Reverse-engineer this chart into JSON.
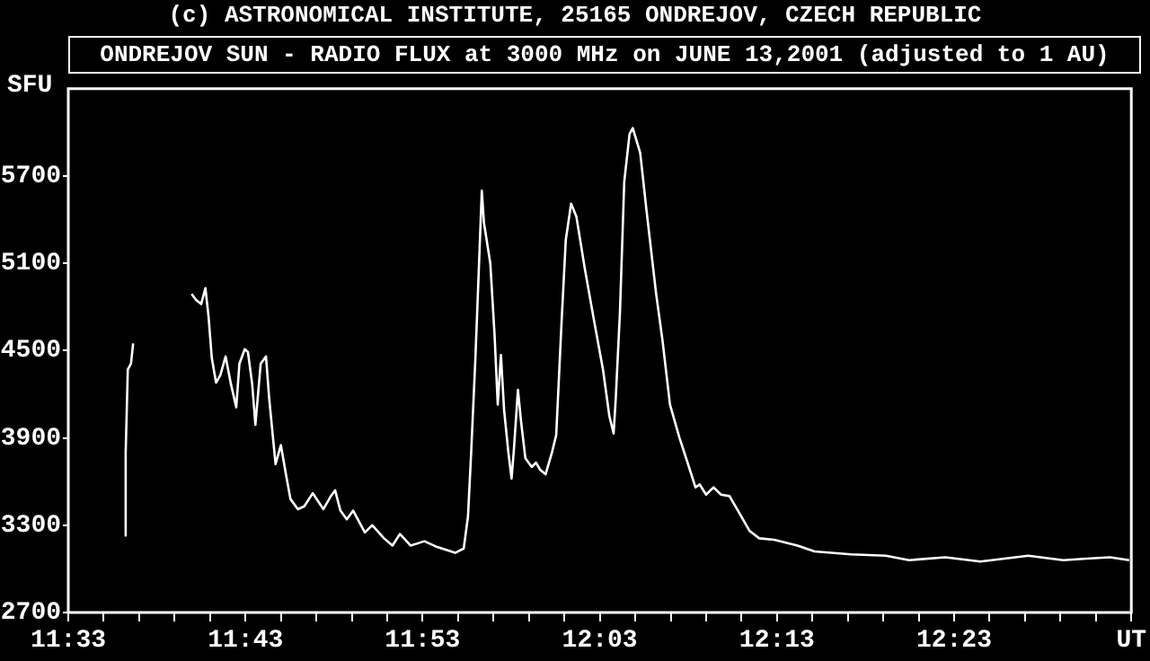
{
  "chart_data": {
    "type": "line",
    "annotations": [
      "(c) ASTRONOMICAL INSTITUTE, 25165 ONDREJOV, CZECH REPUBLIC"
    ],
    "title": "ONDREJOV SUN - RADIO FLUX at 3000 MHz on JUNE 13,2001 (adjusted to 1 AU)",
    "ylabel": "SFU",
    "x": [
      11.603,
      11.604,
      11.606,
      11.609,
      11.611,
      11.63,
      11.666,
      11.67,
      11.675,
      11.679,
      11.682,
      11.685,
      11.689,
      11.693,
      11.698,
      11.703,
      11.708,
      11.711,
      11.716,
      11.719,
      11.723,
      11.726,
      11.731,
      11.736,
      11.739,
      11.745,
      11.75,
      11.755,
      11.759,
      11.766,
      11.772,
      11.78,
      11.79,
      11.797,
      11.801,
      11.806,
      11.812,
      11.818,
      11.829,
      11.836,
      11.847,
      11.855,
      11.862,
      11.872,
      11.885,
      11.897,
      11.914,
      11.922,
      11.926,
      11.929,
      11.933,
      11.936,
      11.939,
      11.941,
      11.947,
      11.951,
      11.954,
      11.957,
      11.96,
      11.964,
      11.967,
      11.969,
      11.973,
      11.976,
      11.98,
      11.986,
      11.99,
      11.994,
      11.999,
      12.005,
      12.009,
      12.014,
      12.018,
      12.023,
      12.028,
      12.036,
      12.044,
      12.053,
      12.059,
      12.063,
      12.065,
      12.069,
      12.073,
      12.078,
      12.081,
      12.088,
      12.094,
      12.103,
      12.109,
      12.116,
      12.125,
      12.133,
      12.14,
      12.144,
      12.15,
      12.157,
      12.164,
      12.172,
      12.18,
      12.191,
      12.2,
      12.214,
      12.236,
      12.252,
      12.286,
      12.319,
      12.341,
      12.375,
      12.408,
      12.441,
      12.453,
      12.486,
      12.508,
      12.53,
      12.548
    ],
    "series": [
      {
        "color": "#ffffff",
        "values": [
          3230,
          3800,
          4370,
          4410,
          4550,
          null,
          4890,
          4850,
          4820,
          4930,
          4730,
          4450,
          4280,
          4330,
          4460,
          4270,
          4110,
          4410,
          4510,
          4490,
          4270,
          3990,
          4410,
          4460,
          4170,
          3720,
          3850,
          3640,
          3480,
          3410,
          3430,
          3520,
          3410,
          3500,
          3540,
          3400,
          3340,
          3400,
          3250,
          3300,
          3210,
          3160,
          3240,
          3160,
          3190,
          3150,
          3110,
          3140,
          3360,
          3800,
          4450,
          5020,
          5600,
          5380,
          5100,
          4610,
          4130,
          4470,
          4090,
          3800,
          3620,
          3800,
          4230,
          4010,
          3760,
          3700,
          3730,
          3680,
          3650,
          3800,
          3920,
          4690,
          5260,
          5510,
          5420,
          5060,
          4730,
          4370,
          4050,
          3930,
          4170,
          4770,
          5660,
          5990,
          6030,
          5860,
          5460,
          4890,
          4570,
          4130,
          3900,
          3720,
          3560,
          3580,
          3510,
          3560,
          3510,
          3500,
          3400,
          3260,
          3210,
          3200,
          3160,
          3120,
          3100,
          3090,
          3060,
          3080,
          3050,
          3080,
          3090,
          3060,
          3070,
          3080,
          3060
        ]
      }
    ],
    "xlim": [
      11.55,
      12.55
    ],
    "xticks": [
      {
        "value": 11.55,
        "label": "11:33"
      },
      {
        "value": 11.5833,
        "label": null
      },
      {
        "value": 11.6167,
        "label": null
      },
      {
        "value": 11.65,
        "label": null
      },
      {
        "value": 11.6833,
        "label": null
      },
      {
        "value": 11.7167,
        "label": "11:43"
      },
      {
        "value": 11.75,
        "label": null
      },
      {
        "value": 11.7833,
        "label": null
      },
      {
        "value": 11.8167,
        "label": null
      },
      {
        "value": 11.85,
        "label": null
      },
      {
        "value": 11.8833,
        "label": "11:53"
      },
      {
        "value": 11.9167,
        "label": null
      },
      {
        "value": 11.95,
        "label": null
      },
      {
        "value": 11.9833,
        "label": null
      },
      {
        "value": 12.0167,
        "label": null
      },
      {
        "value": 12.05,
        "label": "12:03"
      },
      {
        "value": 12.0833,
        "label": null
      },
      {
        "value": 12.1167,
        "label": null
      },
      {
        "value": 12.15,
        "label": null
      },
      {
        "value": 12.1833,
        "label": null
      },
      {
        "value": 12.2167,
        "label": "12:13"
      },
      {
        "value": 12.25,
        "label": null
      },
      {
        "value": 12.2833,
        "label": null
      },
      {
        "value": 12.3167,
        "label": null
      },
      {
        "value": 12.35,
        "label": null
      },
      {
        "value": 12.3833,
        "label": "12:23"
      },
      {
        "value": 12.4167,
        "label": null
      },
      {
        "value": 12.45,
        "label": null
      },
      {
        "value": 12.4833,
        "label": null
      },
      {
        "value": 12.5167,
        "label": null
      },
      {
        "value": 12.55,
        "label": "UT"
      }
    ],
    "ylim": [
      2700,
      6300
    ],
    "yticks": [
      2700,
      3300,
      3900,
      4500,
      5100,
      5700
    ],
    "grid": false,
    "legend": false,
    "marker": "none",
    "line_style": "solid"
  }
}
